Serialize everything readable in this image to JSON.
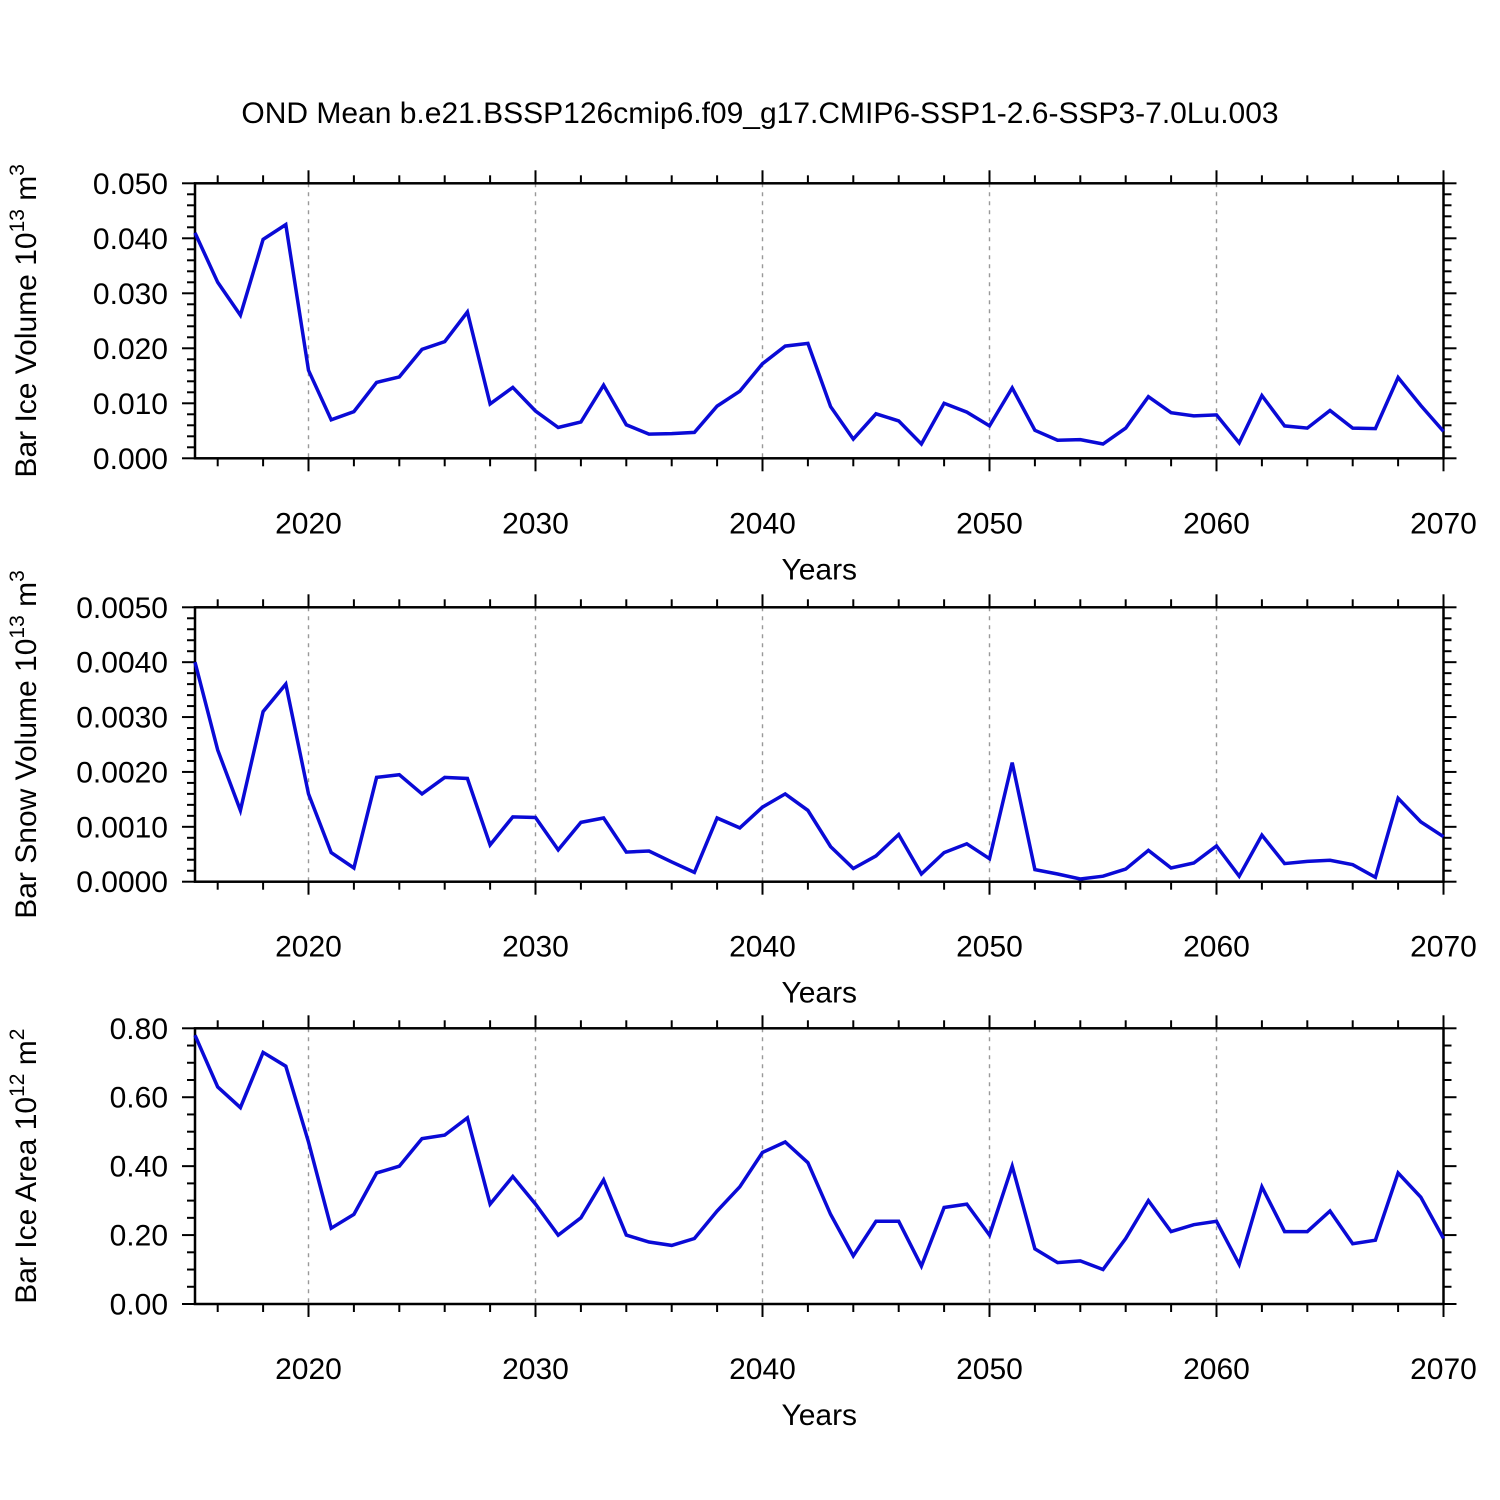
{
  "title": "OND Mean b.e21.BSSP126cmip6.f09_g17.CMIP6-SSP1-2.6-SSP3-7.0Lu.003",
  "colors": {
    "line": "#0a0ad6",
    "axis": "#000000",
    "grid": "#999999",
    "background": "#ffffff"
  },
  "axes_layout": {
    "grid_years": [
      2020,
      2030,
      2040,
      2050,
      2060
    ],
    "x_minor_step_years": 2,
    "legend": "none",
    "grid_style": "vertical-dashed"
  },
  "chart_data": [
    {
      "type": "line",
      "panel": "top",
      "ylabel": "Bar Ice Volume 10^13 m^3",
      "ylabel_parts": [
        {
          "t": "Bar Ice Volume 10"
        },
        {
          "t": "13",
          "sup": true
        },
        {
          "t": " m"
        },
        {
          "t": "3",
          "sup": true
        }
      ],
      "xlabel": "Years",
      "ylim": [
        0.0,
        0.05
      ],
      "y_tick_labels": [
        "0.000",
        "0.010",
        "0.020",
        "0.030",
        "0.040",
        "0.050"
      ],
      "y_tick_values": [
        0.0,
        0.01,
        0.02,
        0.03,
        0.04,
        0.05
      ],
      "y_minor_step": 0.002,
      "x_tick_labels": [
        "2020",
        "2030",
        "2040",
        "2050",
        "2060",
        "2070"
      ],
      "x_tick_values": [
        2020,
        2030,
        2040,
        2050,
        2060,
        2070
      ],
      "x": [
        2015,
        2016,
        2017,
        2018,
        2019,
        2020,
        2021,
        2022,
        2023,
        2024,
        2025,
        2026,
        2027,
        2028,
        2029,
        2030,
        2031,
        2032,
        2033,
        2034,
        2035,
        2036,
        2037,
        2038,
        2039,
        2040,
        2041,
        2042,
        2043,
        2044,
        2045,
        2046,
        2047,
        2048,
        2049,
        2050,
        2051,
        2052,
        2053,
        2054,
        2055,
        2056,
        2057,
        2058,
        2059,
        2060,
        2061,
        2062,
        2063,
        2064,
        2065,
        2066,
        2067,
        2068,
        2069,
        2070
      ],
      "values": [
        0.041,
        0.032,
        0.026,
        0.0398,
        0.0425,
        0.016,
        0.007,
        0.0085,
        0.0138,
        0.0148,
        0.0198,
        0.0212,
        0.0266,
        0.0099,
        0.0129,
        0.0086,
        0.0056,
        0.0066,
        0.0133,
        0.0061,
        0.0044,
        0.0045,
        0.0047,
        0.0095,
        0.0122,
        0.0172,
        0.0204,
        0.0209,
        0.0094,
        0.0035,
        0.0081,
        0.0068,
        0.0026,
        0.01,
        0.0084,
        0.0059,
        0.0128,
        0.0051,
        0.0033,
        0.0034,
        0.0026,
        0.0055,
        0.0112,
        0.0083,
        0.0077,
        0.0079,
        0.0028,
        0.0114,
        0.0059,
        0.0055,
        0.0087,
        0.0055,
        0.0054,
        0.0147,
        0.0096,
        0.0049
      ]
    },
    {
      "type": "line",
      "panel": "middle",
      "ylabel": "Bar Snow Volume 10^13 m^3",
      "ylabel_parts": [
        {
          "t": "Bar Snow Volume 10"
        },
        {
          "t": "13",
          "sup": true
        },
        {
          "t": " m"
        },
        {
          "t": "3",
          "sup": true
        }
      ],
      "xlabel": "Years",
      "ylim": [
        0.0,
        0.005
      ],
      "y_tick_labels": [
        "0.0000",
        "0.0010",
        "0.0020",
        "0.0030",
        "0.0040",
        "0.0050"
      ],
      "y_tick_values": [
        0.0,
        0.001,
        0.002,
        0.003,
        0.004,
        0.005
      ],
      "y_minor_step": 0.0002,
      "x_tick_labels": [
        "2020",
        "2030",
        "2040",
        "2050",
        "2060",
        "2070"
      ],
      "x_tick_values": [
        2020,
        2030,
        2040,
        2050,
        2060,
        2070
      ],
      "x": [
        2015,
        2016,
        2017,
        2018,
        2019,
        2020,
        2021,
        2022,
        2023,
        2024,
        2025,
        2026,
        2027,
        2028,
        2029,
        2030,
        2031,
        2032,
        2033,
        2034,
        2035,
        2036,
        2037,
        2038,
        2039,
        2040,
        2041,
        2042,
        2043,
        2044,
        2045,
        2046,
        2047,
        2048,
        2049,
        2050,
        2051,
        2052,
        2053,
        2054,
        2055,
        2056,
        2057,
        2058,
        2059,
        2060,
        2061,
        2062,
        2063,
        2064,
        2065,
        2066,
        2067,
        2068,
        2069,
        2070
      ],
      "values": [
        0.004,
        0.0024,
        0.0013,
        0.0031,
        0.0036,
        0.0016,
        0.00053,
        0.00025,
        0.0019,
        0.00195,
        0.0016,
        0.0019,
        0.00188,
        0.00067,
        0.00118,
        0.00117,
        0.00058,
        0.00108,
        0.00116,
        0.00054,
        0.00056,
        0.00036,
        0.00017,
        0.00116,
        0.00098,
        0.00136,
        0.0016,
        0.0013,
        0.00064,
        0.00024,
        0.00047,
        0.00086,
        0.00014,
        0.00053,
        0.00069,
        0.00042,
        0.00217,
        0.00022,
        0.00014,
        5e-05,
        0.0001,
        0.00023,
        0.00057,
        0.00025,
        0.00034,
        0.00065,
        0.0001,
        0.00085,
        0.00033,
        0.00037,
        0.00039,
        0.00031,
        8e-05,
        0.00152,
        0.00109,
        0.00082
      ]
    },
    {
      "type": "line",
      "panel": "bottom",
      "ylabel": "Bar Ice Area 10^12 m^2",
      "ylabel_parts": [
        {
          "t": "Bar Ice Area 10"
        },
        {
          "t": "12",
          "sup": true
        },
        {
          "t": " m"
        },
        {
          "t": "2",
          "sup": true
        }
      ],
      "xlabel": "Years",
      "ylim": [
        0.0,
        0.8
      ],
      "y_tick_labels": [
        "0.00",
        "0.20",
        "0.40",
        "0.60",
        "0.80"
      ],
      "y_tick_values": [
        0.0,
        0.2,
        0.4,
        0.6,
        0.8
      ],
      "y_minor_step": 0.05,
      "x_tick_labels": [
        "2020",
        "2030",
        "2040",
        "2050",
        "2060",
        "2070"
      ],
      "x_tick_values": [
        2020,
        2030,
        2040,
        2050,
        2060,
        2070
      ],
      "x": [
        2015,
        2016,
        2017,
        2018,
        2019,
        2020,
        2021,
        2022,
        2023,
        2024,
        2025,
        2026,
        2027,
        2028,
        2029,
        2030,
        2031,
        2032,
        2033,
        2034,
        2035,
        2036,
        2037,
        2038,
        2039,
        2040,
        2041,
        2042,
        2043,
        2044,
        2045,
        2046,
        2047,
        2048,
        2049,
        2050,
        2051,
        2052,
        2053,
        2054,
        2055,
        2056,
        2057,
        2058,
        2059,
        2060,
        2061,
        2062,
        2063,
        2064,
        2065,
        2066,
        2067,
        2068,
        2069,
        2070
      ],
      "values": [
        0.78,
        0.63,
        0.57,
        0.73,
        0.69,
        0.47,
        0.22,
        0.26,
        0.38,
        0.4,
        0.48,
        0.49,
        0.54,
        0.29,
        0.37,
        0.29,
        0.2,
        0.25,
        0.36,
        0.2,
        0.18,
        0.17,
        0.19,
        0.27,
        0.34,
        0.44,
        0.47,
        0.41,
        0.26,
        0.14,
        0.24,
        0.24,
        0.11,
        0.28,
        0.29,
        0.2,
        0.4,
        0.16,
        0.12,
        0.125,
        0.1,
        0.19,
        0.3,
        0.21,
        0.23,
        0.24,
        0.115,
        0.34,
        0.21,
        0.21,
        0.27,
        0.175,
        0.185,
        0.38,
        0.31,
        0.19
      ]
    }
  ]
}
